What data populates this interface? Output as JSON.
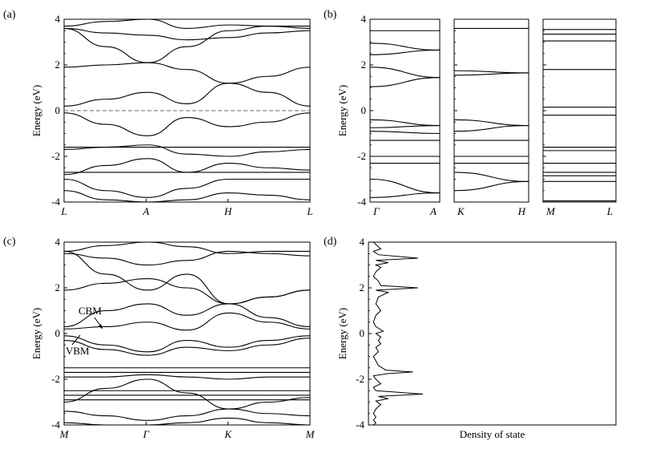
{
  "chart_data": [
    {
      "panel": "(a)",
      "type": "line",
      "ylabel": "Energy (eV)",
      "ylim": [
        -4,
        4
      ],
      "yticks": [
        -4,
        -2,
        0,
        2,
        4
      ],
      "xticks": [
        "L",
        "A",
        "H",
        "L"
      ],
      "fermi_level": 0,
      "series": [
        {
          "x": [
            0,
            0.17,
            0.34,
            0.5,
            0.67,
            0.83,
            1.0
          ],
          "y": [
            3.6,
            3.4,
            3.3,
            3.1,
            3.2,
            3.4,
            3.5
          ]
        },
        {
          "x": [
            0,
            0.17,
            0.34,
            0.5,
            0.67,
            0.83,
            1.0
          ],
          "y": [
            3.7,
            3.9,
            4.0,
            3.6,
            3.75,
            3.7,
            3.6
          ]
        },
        {
          "x": [
            0,
            0.17,
            0.34,
            0.5,
            0.67,
            0.83,
            1.0
          ],
          "y": [
            3.6,
            2.8,
            2.1,
            2.8,
            3.5,
            3.7,
            3.7
          ]
        },
        {
          "x": [
            0,
            0.17,
            0.34,
            0.5,
            0.67,
            0.83,
            1.0
          ],
          "y": [
            1.9,
            2.0,
            2.1,
            1.8,
            1.2,
            1.5,
            1.9
          ]
        },
        {
          "x": [
            0,
            0.17,
            0.34,
            0.5,
            0.67,
            0.83,
            1.0
          ],
          "y": [
            0.2,
            0.5,
            0.8,
            0.3,
            1.2,
            0.8,
            0.2
          ]
        },
        {
          "x": [
            0,
            0.17,
            0.34,
            0.5,
            0.67,
            0.83,
            1.0
          ],
          "y": [
            -0.1,
            -0.6,
            -1.1,
            -0.3,
            -0.7,
            -0.5,
            -0.1
          ]
        },
        {
          "x": [
            0,
            0.17,
            0.34,
            0.5,
            0.67,
            0.83,
            1.0
          ],
          "y": [
            -1.6,
            -1.6,
            -1.6,
            -1.6,
            -1.6,
            -1.6,
            -1.6
          ]
        },
        {
          "x": [
            0,
            0.17,
            0.34,
            0.5,
            0.67,
            0.83,
            1.0
          ],
          "y": [
            -1.7,
            -1.6,
            -1.5,
            -1.9,
            -2.0,
            -1.8,
            -1.7
          ]
        },
        {
          "x": [
            0,
            0.17,
            0.34,
            0.5,
            0.67,
            0.83,
            1.0
          ],
          "y": [
            -2.7,
            -2.7,
            -2.7,
            -2.7,
            -2.7,
            -2.7,
            -2.7
          ]
        },
        {
          "x": [
            0,
            0.17,
            0.34,
            0.5,
            0.67,
            0.83,
            1.0
          ],
          "y": [
            -2.8,
            -2.4,
            -2.1,
            -2.7,
            -2.3,
            -2.5,
            -2.6
          ]
        },
        {
          "x": [
            0,
            0.17,
            0.34,
            0.5,
            0.67,
            0.83,
            1.0
          ],
          "y": [
            -3.0,
            -3.5,
            -3.8,
            -3.4,
            -3.0,
            -3.0,
            -3.0
          ]
        },
        {
          "x": [
            0,
            0.17,
            0.34,
            0.5,
            0.67,
            0.83,
            1.0
          ],
          "y": [
            -3.5,
            -3.9,
            -4.0,
            -3.9,
            -3.6,
            -3.7,
            -3.9
          ]
        }
      ]
    },
    {
      "panel": "(b)",
      "type": "line",
      "ylabel": "Energy (eV)",
      "ylim": [
        -4,
        4
      ],
      "yticks": [
        -4,
        -2,
        0,
        2,
        4
      ],
      "subpanels": [
        {
          "xticks": [
            "Γ",
            "A"
          ],
          "series": [
            {
              "x": [
                0,
                1
              ],
              "y": [
                3.5,
                3.5
              ]
            },
            {
              "x": [
                0,
                1
              ],
              "y": [
                2.95,
                2.65
              ]
            },
            {
              "x": [
                0,
                1
              ],
              "y": [
                2.45,
                2.65
              ]
            },
            {
              "x": [
                0,
                1
              ],
              "y": [
                1.9,
                1.45
              ]
            },
            {
              "x": [
                0,
                1
              ],
              "y": [
                1.05,
                1.45
              ]
            },
            {
              "x": [
                0,
                1
              ],
              "y": [
                -0.4,
                -0.65
              ]
            },
            {
              "x": [
                0,
                1
              ],
              "y": [
                -0.75,
                -0.65
              ]
            },
            {
              "x": [
                0,
                1
              ],
              "y": [
                -0.9,
                -1.0
              ]
            },
            {
              "x": [
                0,
                1
              ],
              "y": [
                -1.3,
                -1.3
              ]
            },
            {
              "x": [
                0,
                1
              ],
              "y": [
                -2.0,
                -2.0
              ]
            },
            {
              "x": [
                0,
                1
              ],
              "y": [
                -2.3,
                -2.3
              ]
            },
            {
              "x": [
                0,
                1
              ],
              "y": [
                -3.0,
                -3.6
              ]
            },
            {
              "x": [
                0,
                1
              ],
              "y": [
                -3.8,
                -3.6
              ]
            }
          ]
        },
        {
          "xticks": [
            "K",
            "H"
          ],
          "series": [
            {
              "x": [
                0,
                1
              ],
              "y": [
                3.6,
                3.6
              ]
            },
            {
              "x": [
                0,
                1
              ],
              "y": [
                1.75,
                1.65
              ]
            },
            {
              "x": [
                0,
                1
              ],
              "y": [
                1.55,
                1.65
              ]
            },
            {
              "x": [
                0,
                1
              ],
              "y": [
                -0.4,
                -0.65
              ]
            },
            {
              "x": [
                0,
                1
              ],
              "y": [
                -0.9,
                -0.65
              ]
            },
            {
              "x": [
                0,
                1
              ],
              "y": [
                -1.3,
                -1.3
              ]
            },
            {
              "x": [
                0,
                1
              ],
              "y": [
                -2.0,
                -2.0
              ]
            },
            {
              "x": [
                0,
                1
              ],
              "y": [
                -2.3,
                -2.3
              ]
            },
            {
              "x": [
                0,
                1
              ],
              "y": [
                -2.7,
                -3.1
              ]
            },
            {
              "x": [
                0,
                1
              ],
              "y": [
                -3.5,
                -3.1
              ]
            }
          ]
        },
        {
          "xticks": [
            "M",
            "L"
          ],
          "series": [
            {
              "x": [
                0,
                1
              ],
              "y": [
                3.55,
                3.55
              ]
            },
            {
              "x": [
                0,
                1
              ],
              "y": [
                3.35,
                3.35
              ]
            },
            {
              "x": [
                0,
                1
              ],
              "y": [
                3.05,
                3.05
              ]
            },
            {
              "x": [
                0,
                1
              ],
              "y": [
                1.8,
                1.8
              ]
            },
            {
              "x": [
                0,
                1
              ],
              "y": [
                0.15,
                0.15
              ]
            },
            {
              "x": [
                0,
                1
              ],
              "y": [
                -0.2,
                -0.2
              ]
            },
            {
              "x": [
                0,
                1
              ],
              "y": [
                -1.6,
                -1.6
              ]
            },
            {
              "x": [
                0,
                1
              ],
              "y": [
                -1.75,
                -1.75
              ]
            },
            {
              "x": [
                0,
                1
              ],
              "y": [
                -2.3,
                -2.3
              ]
            },
            {
              "x": [
                0,
                1
              ],
              "y": [
                -2.7,
                -2.7
              ]
            },
            {
              "x": [
                0,
                1
              ],
              "y": [
                -2.85,
                -2.85
              ]
            },
            {
              "x": [
                0,
                1
              ],
              "y": [
                -3.1,
                -3.1
              ]
            },
            {
              "x": [
                0,
                1
              ],
              "y": [
                -3.95,
                -3.95
              ]
            }
          ]
        }
      ]
    },
    {
      "panel": "(c)",
      "type": "line",
      "ylabel": "Energy (eV)",
      "ylim": [
        -4,
        4
      ],
      "yticks": [
        -4,
        -2,
        0,
        2,
        4
      ],
      "xticks": [
        "M",
        "Γ",
        "K",
        "M"
      ],
      "annotations": [
        "CBM",
        "VBM"
      ],
      "series": [
        {
          "x": [
            0,
            0.17,
            0.34,
            0.5,
            0.67,
            0.83,
            1.0
          ],
          "y": [
            3.5,
            3.3,
            3.0,
            3.2,
            3.6,
            3.5,
            3.4
          ]
        },
        {
          "x": [
            0,
            0.17,
            0.34,
            0.5,
            0.67,
            0.83,
            1.0
          ],
          "y": [
            3.6,
            3.85,
            4.0,
            3.8,
            3.5,
            3.6,
            3.6
          ]
        },
        {
          "x": [
            0,
            0.17,
            0.34,
            0.5,
            0.67,
            0.83,
            1.0
          ],
          "y": [
            3.6,
            2.6,
            1.9,
            2.6,
            1.3,
            1.6,
            1.9
          ]
        },
        {
          "x": [
            0,
            0.17,
            0.34,
            0.5,
            0.67,
            0.83,
            1.0
          ],
          "y": [
            1.9,
            2.2,
            2.4,
            2.0,
            1.3,
            1.6,
            1.9
          ]
        },
        {
          "x": [
            0,
            0.17,
            0.34,
            0.5,
            0.67,
            0.83,
            1.0
          ],
          "y": [
            0.3,
            1.0,
            1.3,
            0.8,
            1.3,
            0.7,
            0.3
          ]
        },
        {
          "x": [
            0,
            0.17,
            0.34,
            0.5,
            0.67,
            0.83,
            1.0
          ],
          "y": [
            0.2,
            0.3,
            0.5,
            0.15,
            0.9,
            0.5,
            0.2
          ]
        },
        {
          "x": [
            0,
            0.17,
            0.34,
            0.5,
            0.67,
            0.83,
            1.0
          ],
          "y": [
            -0.1,
            -0.5,
            -0.8,
            -0.3,
            -0.6,
            -0.3,
            -0.1
          ]
        },
        {
          "x": [
            0,
            0.17,
            0.34,
            0.5,
            0.67,
            0.83,
            1.0
          ],
          "y": [
            -0.3,
            -0.7,
            -0.95,
            -0.6,
            -0.75,
            -0.5,
            -0.2
          ]
        },
        {
          "x": [
            0,
            0.17,
            0.34,
            0.5,
            0.67,
            0.83,
            1.0
          ],
          "y": [
            -1.5,
            -1.5,
            -1.5,
            -1.5,
            -1.5,
            -1.5,
            -1.5
          ]
        },
        {
          "x": [
            0,
            0.17,
            0.34,
            0.5,
            0.67,
            0.83,
            1.0
          ],
          "y": [
            -1.7,
            -1.7,
            -1.7,
            -1.7,
            -1.7,
            -1.7,
            -1.7
          ]
        },
        {
          "x": [
            0,
            0.17,
            0.34,
            0.5,
            0.67,
            0.83,
            1.0
          ],
          "y": [
            -1.9,
            -1.9,
            -1.8,
            -1.9,
            -2.0,
            -1.9,
            -1.9
          ]
        },
        {
          "x": [
            0,
            0.17,
            0.34,
            0.5,
            0.67,
            0.83,
            1.0
          ],
          "y": [
            -2.5,
            -2.5,
            -2.5,
            -2.5,
            -2.5,
            -2.5,
            -2.5
          ]
        },
        {
          "x": [
            0,
            0.17,
            0.34,
            0.5,
            0.67,
            0.83,
            1.0
          ],
          "y": [
            -2.7,
            -2.7,
            -2.7,
            -2.7,
            -2.7,
            -2.7,
            -2.7
          ]
        },
        {
          "x": [
            0,
            0.17,
            0.34,
            0.5,
            0.67,
            0.83,
            1.0
          ],
          "y": [
            -2.9,
            -2.9,
            -2.9,
            -2.9,
            -2.9,
            -2.9,
            -2.9
          ]
        },
        {
          "x": [
            0,
            0.17,
            0.34,
            0.5,
            0.67,
            0.83,
            1.0
          ],
          "y": [
            -3.0,
            -2.4,
            -2.0,
            -2.6,
            -3.3,
            -3.0,
            -2.8
          ]
        },
        {
          "x": [
            0,
            0.17,
            0.34,
            0.5,
            0.67,
            0.83,
            1.0
          ],
          "y": [
            -3.4,
            -3.6,
            -3.8,
            -3.6,
            -3.3,
            -3.5,
            -3.6
          ]
        },
        {
          "x": [
            0,
            0.17,
            0.34,
            0.5,
            0.67,
            0.83,
            1.0
          ],
          "y": [
            -3.9,
            -4.0,
            -4.0,
            -3.9,
            -3.7,
            -3.9,
            -4.0
          ]
        }
      ]
    },
    {
      "panel": "(d)",
      "type": "line",
      "xlabel": "Density of state",
      "ylabel": "Energy (eV)",
      "ylim": [
        -4,
        4
      ],
      "yticks": [
        -4,
        -2,
        0,
        2,
        4
      ],
      "series": [
        {
          "x": [
            0.02,
            0.03,
            0.02,
            0.03,
            0.02,
            0.03,
            0.05,
            0.03,
            0.08,
            0.04,
            0.22,
            0.03,
            0.02,
            0.05,
            0.03,
            0.02,
            0.08,
            0.18,
            0.07,
            0.04,
            0.03,
            0.02,
            0.04,
            0.03,
            0.05,
            0.04,
            0.05,
            0.03,
            0.06,
            0.03,
            0.02,
            0.03,
            0.05,
            0.03,
            0.04,
            0.08,
            0.03,
            0.2,
            0.05,
            0.04,
            0.02,
            0.03,
            0.05,
            0.03,
            0.08,
            0.03,
            0.2,
            0.04,
            0.02,
            0.05,
            0.02
          ],
          "y": [
            -4.0,
            -3.9,
            -3.8,
            -3.65,
            -3.5,
            -3.3,
            -3.1,
            -2.95,
            -2.85,
            -2.75,
            -2.65,
            -2.5,
            -2.35,
            -2.2,
            -2.0,
            -1.85,
            -1.75,
            -1.68,
            -1.6,
            -1.4,
            -1.2,
            -1.0,
            -0.8,
            -0.6,
            -0.45,
            -0.3,
            -0.15,
            0.0,
            0.1,
            0.3,
            0.5,
            0.8,
            1.0,
            1.3,
            1.6,
            1.8,
            1.9,
            2.0,
            2.1,
            2.3,
            2.5,
            2.7,
            2.9,
            3.0,
            3.1,
            3.2,
            3.3,
            3.45,
            3.6,
            3.7,
            4.0
          ]
        }
      ]
    }
  ],
  "labels": {
    "a": "(a)",
    "b": "(b)",
    "c": "(c)",
    "d": "(d)"
  }
}
